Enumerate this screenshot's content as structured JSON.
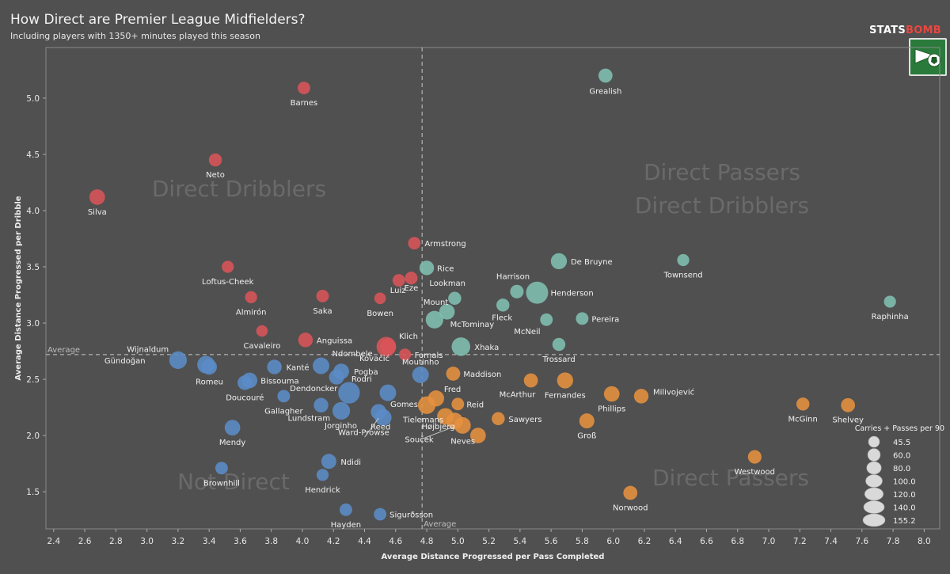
{
  "header": {
    "title": "How Direct are Premier League Midfielders?",
    "subtitle": "Including players with 1350+ minutes played this season",
    "brand_main": "STATS",
    "brand_accent": "BOMB"
  },
  "chart_data": {
    "type": "scatter",
    "xlabel": "Average Distance Progressed per Pass Completed",
    "ylabel": "Average Distance Progressed per Dribble",
    "xlim": [
      2.35,
      8.1
    ],
    "ylim": [
      1.17,
      5.45
    ],
    "xticks": [
      "2.4",
      "2.6",
      "2.8",
      "3.0",
      "3.2",
      "3.4",
      "3.6",
      "3.8",
      "4.0",
      "4.2",
      "4.4",
      "4.6",
      "4.8",
      "5.0",
      "5.2",
      "5.4",
      "5.6",
      "5.8",
      "6.0",
      "6.2",
      "6.4",
      "6.6",
      "6.8",
      "7.0",
      "7.2",
      "7.4",
      "7.6",
      "7.8",
      "8.0"
    ],
    "yticks": [
      "1.5",
      "2.0",
      "2.5",
      "3.0",
      "3.5",
      "4.0",
      "4.5",
      "5.0"
    ],
    "avg_x": 4.77,
    "avg_y": 2.72,
    "avg_x_label": "Average",
    "avg_y_label": "Average",
    "grid": false,
    "quadrants": [
      {
        "label": "Direct Dribblers",
        "color": "#6a6a6a"
      },
      {
        "label": "Direct Passers",
        "color": "#6a6a6a"
      },
      {
        "label": "Direct Dribblers",
        "color": "#6a6a6a"
      },
      {
        "label": "Not Direct",
        "color": "#6a6a6a"
      },
      {
        "label": "Direct Passers",
        "color": "#6a6a6a"
      }
    ],
    "colors": {
      "direct_dribblers": "#d95459",
      "both": "#7fbfb0",
      "not_direct": "#5b8cc7",
      "direct_passers": "#e6913f"
    },
    "size_legend": {
      "title": "Carries + Passes per 90",
      "values": [
        "45.5",
        "60.0",
        "80.0",
        "100.0",
        "120.0",
        "140.0",
        "155.2"
      ]
    },
    "players": [
      {
        "name": "Barnes",
        "x": 4.01,
        "y": 5.09,
        "size": 60,
        "group": "direct_dribblers"
      },
      {
        "name": "Neto",
        "x": 3.44,
        "y": 4.45,
        "size": 65,
        "group": "direct_dribblers"
      },
      {
        "name": "Silva",
        "x": 2.68,
        "y": 4.12,
        "size": 90,
        "group": "direct_dribblers"
      },
      {
        "name": "Armstrong",
        "x": 4.72,
        "y": 3.71,
        "size": 60,
        "group": "direct_dribblers"
      },
      {
        "name": "Loftus-Cheek",
        "x": 3.52,
        "y": 3.5,
        "size": 55,
        "group": "direct_dribblers"
      },
      {
        "name": "Luiz",
        "x": 4.62,
        "y": 3.38,
        "size": 60,
        "group": "direct_dribblers"
      },
      {
        "name": "Eze",
        "x": 4.7,
        "y": 3.4,
        "size": 62,
        "group": "direct_dribblers"
      },
      {
        "name": "Almirón",
        "x": 3.67,
        "y": 3.23,
        "size": 55,
        "group": "direct_dribblers"
      },
      {
        "name": "Saka",
        "x": 4.13,
        "y": 3.24,
        "size": 60,
        "group": "direct_dribblers"
      },
      {
        "name": "Bowen",
        "x": 4.5,
        "y": 3.22,
        "size": 50,
        "group": "direct_dribblers"
      },
      {
        "name": "Cavaleiro",
        "x": 3.74,
        "y": 2.93,
        "size": 50,
        "group": "direct_dribblers"
      },
      {
        "name": "Anguissa",
        "x": 4.02,
        "y": 2.85,
        "size": 80,
        "group": "direct_dribblers"
      },
      {
        "name": "Kovačić",
        "x": 4.54,
        "y": 2.79,
        "size": 130,
        "group": "direct_dribblers"
      },
      {
        "name": "Klich",
        "x": 4.55,
        "y": 2.79,
        "size": 90,
        "group": "direct_dribblers"
      },
      {
        "name": "Fornals",
        "x": 4.66,
        "y": 2.72,
        "size": 55,
        "group": "direct_dribblers"
      },
      {
        "name": "Grealish",
        "x": 5.95,
        "y": 5.2,
        "size": 75,
        "group": "both"
      },
      {
        "name": "De Bruyne",
        "x": 5.65,
        "y": 3.55,
        "size": 95,
        "group": "both"
      },
      {
        "name": "Townsend",
        "x": 6.45,
        "y": 3.56,
        "size": 55,
        "group": "both"
      },
      {
        "name": "Rice",
        "x": 4.8,
        "y": 3.49,
        "size": 80,
        "group": "both"
      },
      {
        "name": "Harrison",
        "x": 5.38,
        "y": 3.28,
        "size": 70,
        "group": "both"
      },
      {
        "name": "Henderson",
        "x": 5.51,
        "y": 3.27,
        "size": 155,
        "group": "both"
      },
      {
        "name": "Lookman",
        "x": 4.98,
        "y": 3.22,
        "size": 65,
        "group": "both"
      },
      {
        "name": "Fleck",
        "x": 5.29,
        "y": 3.16,
        "size": 65,
        "group": "both"
      },
      {
        "name": "Raphinha",
        "x": 7.78,
        "y": 3.19,
        "size": 55,
        "group": "both"
      },
      {
        "name": "McTominay",
        "x": 4.93,
        "y": 3.1,
        "size": 90,
        "group": "both"
      },
      {
        "name": "Mount",
        "x": 4.85,
        "y": 3.03,
        "size": 110,
        "group": "both"
      },
      {
        "name": "McNeil",
        "x": 5.57,
        "y": 3.03,
        "size": 60,
        "group": "both"
      },
      {
        "name": "Pereira",
        "x": 5.8,
        "y": 3.04,
        "size": 60,
        "group": "both"
      },
      {
        "name": "Xhaka",
        "x": 5.02,
        "y": 2.79,
        "size": 120,
        "group": "both"
      },
      {
        "name": "Trossard",
        "x": 5.65,
        "y": 2.81,
        "size": 65,
        "group": "both"
      },
      {
        "name": "Gündoğan",
        "x": 3.2,
        "y": 2.67,
        "size": 110,
        "group": "not_direct"
      },
      {
        "name": "Wijnaldum",
        "x": 3.38,
        "y": 2.63,
        "size": 110,
        "group": "not_direct"
      },
      {
        "name": "Romeu",
        "x": 3.4,
        "y": 2.61,
        "size": 90,
        "group": "not_direct"
      },
      {
        "name": "Kanté",
        "x": 3.82,
        "y": 2.61,
        "size": 80,
        "group": "not_direct"
      },
      {
        "name": "Ndombele",
        "x": 4.12,
        "y": 2.62,
        "size": 100,
        "group": "not_direct"
      },
      {
        "name": "Bissouma",
        "x": 3.66,
        "y": 2.49,
        "size": 90,
        "group": "not_direct"
      },
      {
        "name": "Doucouré",
        "x": 3.63,
        "y": 2.47,
        "size": 80,
        "group": "not_direct"
      },
      {
        "name": "Pogba",
        "x": 4.25,
        "y": 2.57,
        "size": 90,
        "group": "not_direct"
      },
      {
        "name": "Dendoncker",
        "x": 4.22,
        "y": 2.52,
        "size": 85,
        "group": "not_direct"
      },
      {
        "name": "Moutinho",
        "x": 4.76,
        "y": 2.54,
        "size": 100,
        "group": "not_direct"
      },
      {
        "name": "Rodri",
        "x": 4.3,
        "y": 2.38,
        "size": 150,
        "group": "not_direct"
      },
      {
        "name": "Gallagher",
        "x": 3.88,
        "y": 2.35,
        "size": 60,
        "group": "not_direct"
      },
      {
        "name": "Gomes",
        "x": 4.55,
        "y": 2.38,
        "size": 100,
        "group": "not_direct"
      },
      {
        "name": "Lundstram",
        "x": 4.12,
        "y": 2.27,
        "size": 80,
        "group": "not_direct"
      },
      {
        "name": "Jorginho",
        "x": 4.25,
        "y": 2.22,
        "size": 110,
        "group": "not_direct"
      },
      {
        "name": "Reed",
        "x": 4.49,
        "y": 2.21,
        "size": 90,
        "group": "not_direct"
      },
      {
        "name": "Ward-Prowse",
        "x": 4.52,
        "y": 2.16,
        "size": 100,
        "group": "not_direct"
      },
      {
        "name": "Mendy",
        "x": 3.55,
        "y": 2.07,
        "size": 90,
        "group": "not_direct"
      },
      {
        "name": "Ndidi",
        "x": 4.17,
        "y": 1.77,
        "size": 85,
        "group": "not_direct"
      },
      {
        "name": "Brownhill",
        "x": 3.48,
        "y": 1.71,
        "size": 60,
        "group": "not_direct"
      },
      {
        "name": "Hendrick",
        "x": 4.13,
        "y": 1.65,
        "size": 55,
        "group": "not_direct"
      },
      {
        "name": "Hayden",
        "x": 4.28,
        "y": 1.34,
        "size": 60,
        "group": "not_direct"
      },
      {
        "name": "Sigurðsson",
        "x": 4.5,
        "y": 1.3,
        "size": 60,
        "group": "not_direct"
      },
      {
        "name": "Maddison",
        "x": 4.97,
        "y": 2.55,
        "size": 75,
        "group": "direct_passers"
      },
      {
        "name": "McArthur",
        "x": 5.47,
        "y": 2.49,
        "size": 75,
        "group": "direct_passers"
      },
      {
        "name": "Fernandes",
        "x": 5.69,
        "y": 2.49,
        "size": 95,
        "group": "direct_passers"
      },
      {
        "name": "Fred",
        "x": 4.86,
        "y": 2.33,
        "size": 95,
        "group": "direct_passers"
      },
      {
        "name": "Reid",
        "x": 5.0,
        "y": 2.28,
        "size": 60,
        "group": "direct_passers"
      },
      {
        "name": "Tielemans",
        "x": 4.8,
        "y": 2.27,
        "size": 110,
        "group": "direct_passers"
      },
      {
        "name": "Milivojević",
        "x": 6.18,
        "y": 2.35,
        "size": 80,
        "group": "direct_passers"
      },
      {
        "name": "Phillips",
        "x": 5.99,
        "y": 2.37,
        "size": 90,
        "group": "direct_passers"
      },
      {
        "name": "McGinn",
        "x": 7.22,
        "y": 2.28,
        "size": 65,
        "group": "direct_passers"
      },
      {
        "name": "Shelvey",
        "x": 7.51,
        "y": 2.27,
        "size": 75,
        "group": "direct_passers"
      },
      {
        "name": "Sawyers",
        "x": 5.26,
        "y": 2.15,
        "size": 65,
        "group": "direct_passers"
      },
      {
        "name": "Højbjerg",
        "x": 4.92,
        "y": 2.17,
        "size": 100,
        "group": "direct_passers"
      },
      {
        "name": "Souček",
        "x": 4.98,
        "y": 2.13,
        "size": 100,
        "group": "direct_passers"
      },
      {
        "name": "Groß",
        "x": 5.83,
        "y": 2.13,
        "size": 85,
        "group": "direct_passers"
      },
      {
        "name": "Neves",
        "x": 5.03,
        "y": 2.09,
        "size": 100,
        "group": "direct_passers"
      },
      {
        "name": "",
        "x": 5.13,
        "y": 2.0,
        "size": 90,
        "group": "direct_passers"
      },
      {
        "name": "Westwood",
        "x": 6.91,
        "y": 1.81,
        "size": 70,
        "group": "direct_passers"
      },
      {
        "name": "Norwood",
        "x": 6.11,
        "y": 1.49,
        "size": 75,
        "group": "direct_passers"
      }
    ]
  }
}
